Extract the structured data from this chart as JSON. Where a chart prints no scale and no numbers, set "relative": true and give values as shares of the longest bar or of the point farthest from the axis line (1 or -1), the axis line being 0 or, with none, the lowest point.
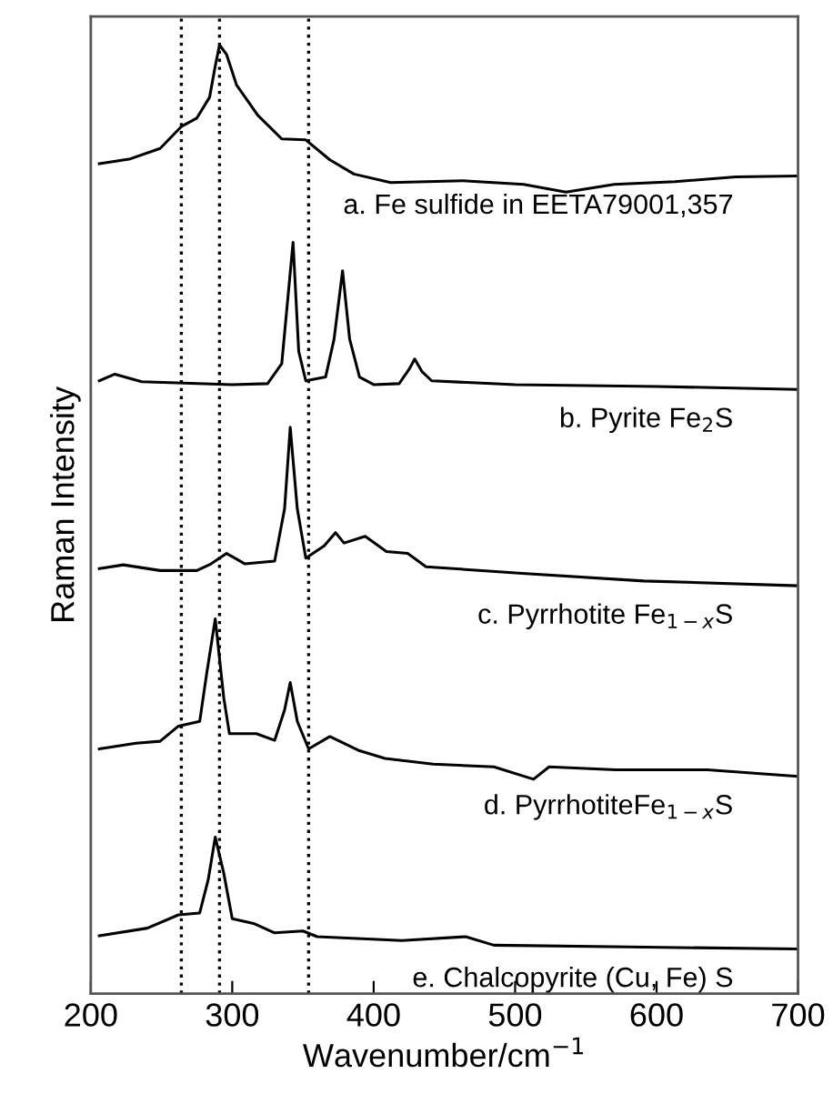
{
  "chart_data": {
    "type": "line",
    "xlabel": "Wavenumber/cm$^{−1}$",
    "ylabel": "Raman Intensity",
    "relative": true,
    "xlim": [
      200,
      700
    ],
    "xticks": [
      200,
      300,
      400,
      500,
      600,
      700
    ],
    "tick_labels": "x",
    "grid": false,
    "legend": false,
    "line_style": "solid",
    "marker": "none",
    "ref_lines": [
      {
        "axis": "x",
        "value": 264,
        "line_style": "dotted",
        "color": "#000000"
      },
      {
        "axis": "x",
        "value": 291,
        "line_style": "dotted",
        "color": "#000000"
      },
      {
        "axis": "x",
        "value": 354,
        "line_style": "dotted",
        "color": "#000000"
      }
    ],
    "series": [
      {
        "name": "a. Fe sulfide in EETA79001,357",
        "color": "#000000",
        "x": [
          206,
          228,
          249,
          264,
          275,
          284,
          288,
          291,
          296,
          303,
          318,
          335,
          352,
          369,
          386,
          412,
          463,
          506,
          536,
          570,
          613,
          656,
          699
        ],
        "values": [
          0.875,
          0.88,
          0.891,
          0.914,
          0.923,
          0.945,
          0.978,
          1.0,
          0.99,
          0.958,
          0.926,
          0.901,
          0.9,
          0.879,
          0.864,
          0.855,
          0.857,
          0.853,
          0.845,
          0.853,
          0.856,
          0.861,
          0.862
        ]
      },
      {
        "name": "b. Pyrite Fe$_{2}$S",
        "color": "#000000",
        "x": [
          206,
          217,
          236,
          300,
          325,
          335,
          343,
          347,
          352,
          366,
          372,
          378,
          383,
          390,
          400,
          418,
          425,
          429,
          434,
          441,
          500,
          600,
          699
        ],
        "values": [
          0.646,
          0.653,
          0.645,
          0.642,
          0.643,
          0.664,
          0.792,
          0.677,
          0.646,
          0.65,
          0.69,
          0.762,
          0.69,
          0.65,
          0.642,
          0.643,
          0.658,
          0.669,
          0.656,
          0.646,
          0.642,
          0.64,
          0.637
        ]
      },
      {
        "name": "c. Pyrrhotite Fe$_{1−x}$S",
        "color": "#000000",
        "x": [
          206,
          223,
          249,
          275,
          285,
          296,
          309,
          330,
          337,
          341,
          346,
          352,
          365,
          373,
          379,
          394,
          409,
          424,
          437,
          505,
          591,
          699
        ],
        "values": [
          0.448,
          0.452,
          0.446,
          0.446,
          0.453,
          0.464,
          0.453,
          0.456,
          0.511,
          0.597,
          0.511,
          0.459,
          0.472,
          0.486,
          0.475,
          0.482,
          0.466,
          0.464,
          0.45,
          0.443,
          0.435,
          0.43
        ]
      },
      {
        "name": "d. PyrrhotiteFe$_{1−x}$S",
        "color": "#000000",
        "x": [
          206,
          232,
          249,
          262,
          277,
          282,
          288,
          294,
          298,
          317,
          330,
          337,
          341,
          346,
          354,
          369,
          390,
          408,
          442,
          485,
          513,
          524,
          571,
          636,
          699
        ],
        "values": [
          0.258,
          0.264,
          0.266,
          0.282,
          0.287,
          0.338,
          0.395,
          0.312,
          0.274,
          0.274,
          0.267,
          0.299,
          0.328,
          0.287,
          0.258,
          0.271,
          0.256,
          0.248,
          0.242,
          0.239,
          0.226,
          0.239,
          0.236,
          0.236,
          0.229
        ]
      },
      {
        "name": "e. Chalcopyrite (Cu, Fe) S",
        "color": "#000000",
        "x": [
          206,
          240,
          262,
          277,
          283,
          288,
          294,
          300,
          315,
          330,
          350,
          360,
          420,
          465,
          485,
          592,
          699
        ],
        "values": [
          0.061,
          0.069,
          0.083,
          0.085,
          0.12,
          0.165,
          0.127,
          0.079,
          0.074,
          0.064,
          0.066,
          0.06,
          0.056,
          0.06,
          0.051,
          0.049,
          0.047
        ]
      }
    ]
  }
}
